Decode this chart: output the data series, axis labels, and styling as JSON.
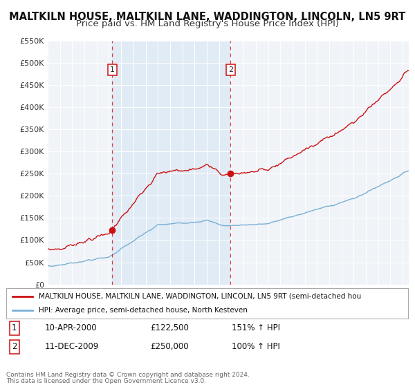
{
  "title": "MALTKILN HOUSE, MALTKILN LANE, WADDINGTON, LINCOLN, LN5 9RT",
  "subtitle": "Price paid vs. HM Land Registry's House Price Index (HPI)",
  "title_fontsize": 10.5,
  "subtitle_fontsize": 9.5,
  "bg_color": "#ffffff",
  "plot_bg_color": "#dce9f5",
  "grid_color": "#ffffff",
  "hpi_color": "#7aafd4",
  "price_color": "#cc1111",
  "shade_color": "#dce9f5",
  "ylim": [
    0,
    550000
  ],
  "yticks": [
    0,
    50000,
    100000,
    150000,
    200000,
    250000,
    300000,
    350000,
    400000,
    450000,
    500000,
    550000
  ],
  "ytick_labels": [
    "£0",
    "£50K",
    "£100K",
    "£150K",
    "£200K",
    "£250K",
    "£300K",
    "£350K",
    "£400K",
    "£450K",
    "£500K",
    "£550K"
  ],
  "transaction1": {
    "date": "10-APR-2000",
    "price": 122500,
    "x": 2000.27
  },
  "transaction2": {
    "date": "11-DEC-2009",
    "price": 250000,
    "x": 2009.94
  },
  "legend_label_price": "MALTKILN HOUSE, MALTKILN LANE, WADDINGTON, LINCOLN, LN5 9RT (semi-detached hou",
  "legend_label_hpi": "HPI: Average price, semi-detached house, North Kesteven",
  "footer1": "Contains HM Land Registry data © Crown copyright and database right 2024.",
  "footer2": "This data is licensed under the Open Government Licence v3.0.",
  "table_rows": [
    {
      "num": "1",
      "date": "10-APR-2000",
      "price": "£122,500",
      "pct": "151% ↑ HPI"
    },
    {
      "num": "2",
      "date": "11-DEC-2009",
      "price": "£250,000",
      "pct": "100% ↑ HPI"
    }
  ]
}
